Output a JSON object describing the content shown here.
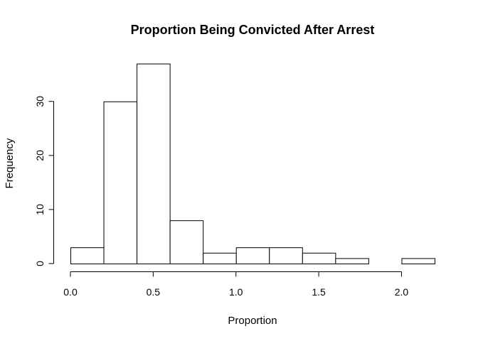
{
  "chart_data": {
    "type": "bar",
    "title": "Proportion Being Convicted After Arrest",
    "xlabel": "Proportion",
    "ylabel": "Frequency",
    "bin_edges": [
      0.0,
      0.2,
      0.4,
      0.6,
      0.8,
      1.0,
      1.2,
      1.4,
      1.6,
      1.8,
      2.0,
      2.2
    ],
    "values": [
      3,
      30,
      37,
      8,
      2,
      3,
      3,
      2,
      1,
      0,
      1
    ],
    "xticks": [
      0.0,
      0.5,
      1.0,
      1.5,
      2.0
    ],
    "xtick_labels": [
      "0.0",
      "0.5",
      "1.0",
      "1.5",
      "2.0"
    ],
    "yticks": [
      0,
      10,
      20,
      30
    ],
    "ytick_labels": [
      "0",
      "10",
      "20",
      "30"
    ],
    "xlim": [
      0.0,
      2.2
    ],
    "ylim": [
      0,
      37
    ],
    "grid": false,
    "bar_fill": "#ffffff",
    "bar_stroke": "#000000"
  }
}
